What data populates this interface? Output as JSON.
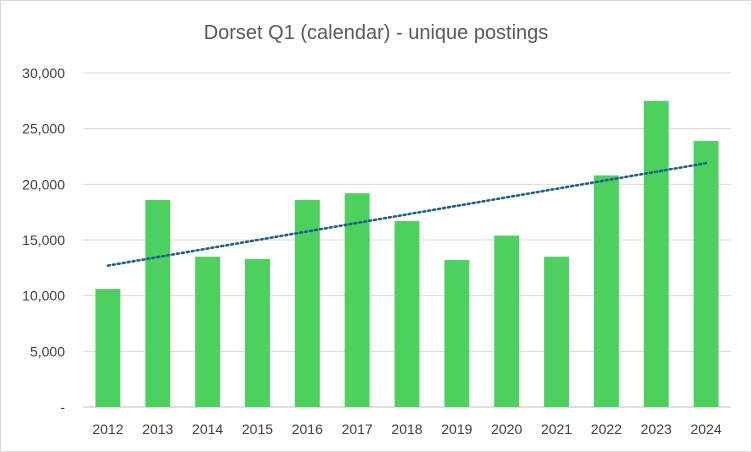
{
  "chart_data": {
    "type": "bar",
    "title": "Dorset Q1 (calendar) - unique postings",
    "xlabel": "",
    "ylabel": "",
    "categories": [
      "2012",
      "2013",
      "2014",
      "2015",
      "2016",
      "2017",
      "2018",
      "2019",
      "2020",
      "2021",
      "2022",
      "2023",
      "2024"
    ],
    "series": [
      {
        "values": [
          10600,
          18600,
          13500,
          13300,
          18600,
          19200,
          16700,
          13200,
          15400,
          13500,
          20800,
          27500,
          23900
        ]
      }
    ],
    "trendline": {
      "type": "linear",
      "start": 12700,
      "end": 21900,
      "style": "dotted"
    },
    "ylim": [
      0,
      30000
    ],
    "y_ticks": [
      {
        "value": 0,
        "label": "-"
      },
      {
        "value": 5000,
        "label": "5,000"
      },
      {
        "value": 10000,
        "label": "10,000"
      },
      {
        "value": 15000,
        "label": "15,000"
      },
      {
        "value": 20000,
        "label": "20,000"
      },
      {
        "value": 25000,
        "label": "25,000"
      },
      {
        "value": 30000,
        "label": "30,000"
      }
    ],
    "grid": true,
    "legend": "none",
    "colors": {
      "bar": "#4cd05e",
      "trendline": "#1f5f8b",
      "grid": "#d9d9d9",
      "axis": "#bfbfbf"
    }
  }
}
